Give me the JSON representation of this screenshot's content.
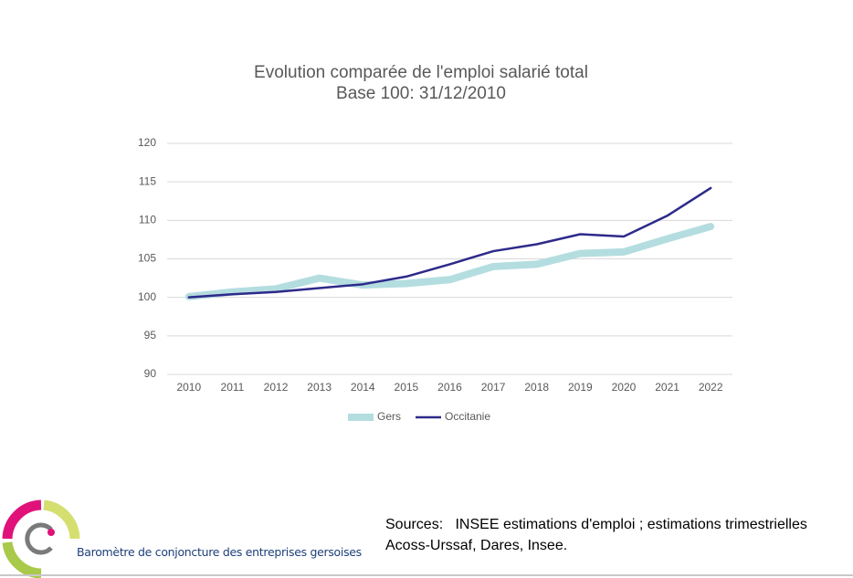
{
  "chart_data": {
    "type": "line",
    "title": "Evolution comparée de l'emploi salarié total",
    "subtitle": "Base 100: 31/12/2010",
    "categories": [
      "2010",
      "2011",
      "2012",
      "2013",
      "2014",
      "2015",
      "2016",
      "2017",
      "2018",
      "2019",
      "2020",
      "2021",
      "2022"
    ],
    "series": [
      {
        "name": "Gers",
        "color": "#b4dde0",
        "values": [
          100.1,
          100.7,
          101.1,
          102.5,
          101.6,
          101.8,
          102.3,
          104.0,
          104.3,
          105.7,
          105.9,
          107.6,
          109.2
        ]
      },
      {
        "name": "Occitanie",
        "color": "#2e2a8a",
        "values": [
          100.0,
          100.4,
          100.7,
          101.2,
          101.7,
          102.7,
          104.3,
          106.0,
          106.9,
          108.2,
          107.9,
          110.6,
          114.2
        ]
      }
    ],
    "ylim": [
      90,
      120
    ],
    "yticks": [
      90,
      95,
      100,
      105,
      110,
      115,
      120
    ],
    "grid": true,
    "legend": "bottom"
  },
  "footer": {
    "brand": "Baromètre de conjoncture des entreprises gersoises",
    "sources_line1": "Sources:   INSEE estimations d'emploi ; estimations trimestrielles",
    "sources_line2": "Acoss-Urssaf, Dares, Insee."
  }
}
